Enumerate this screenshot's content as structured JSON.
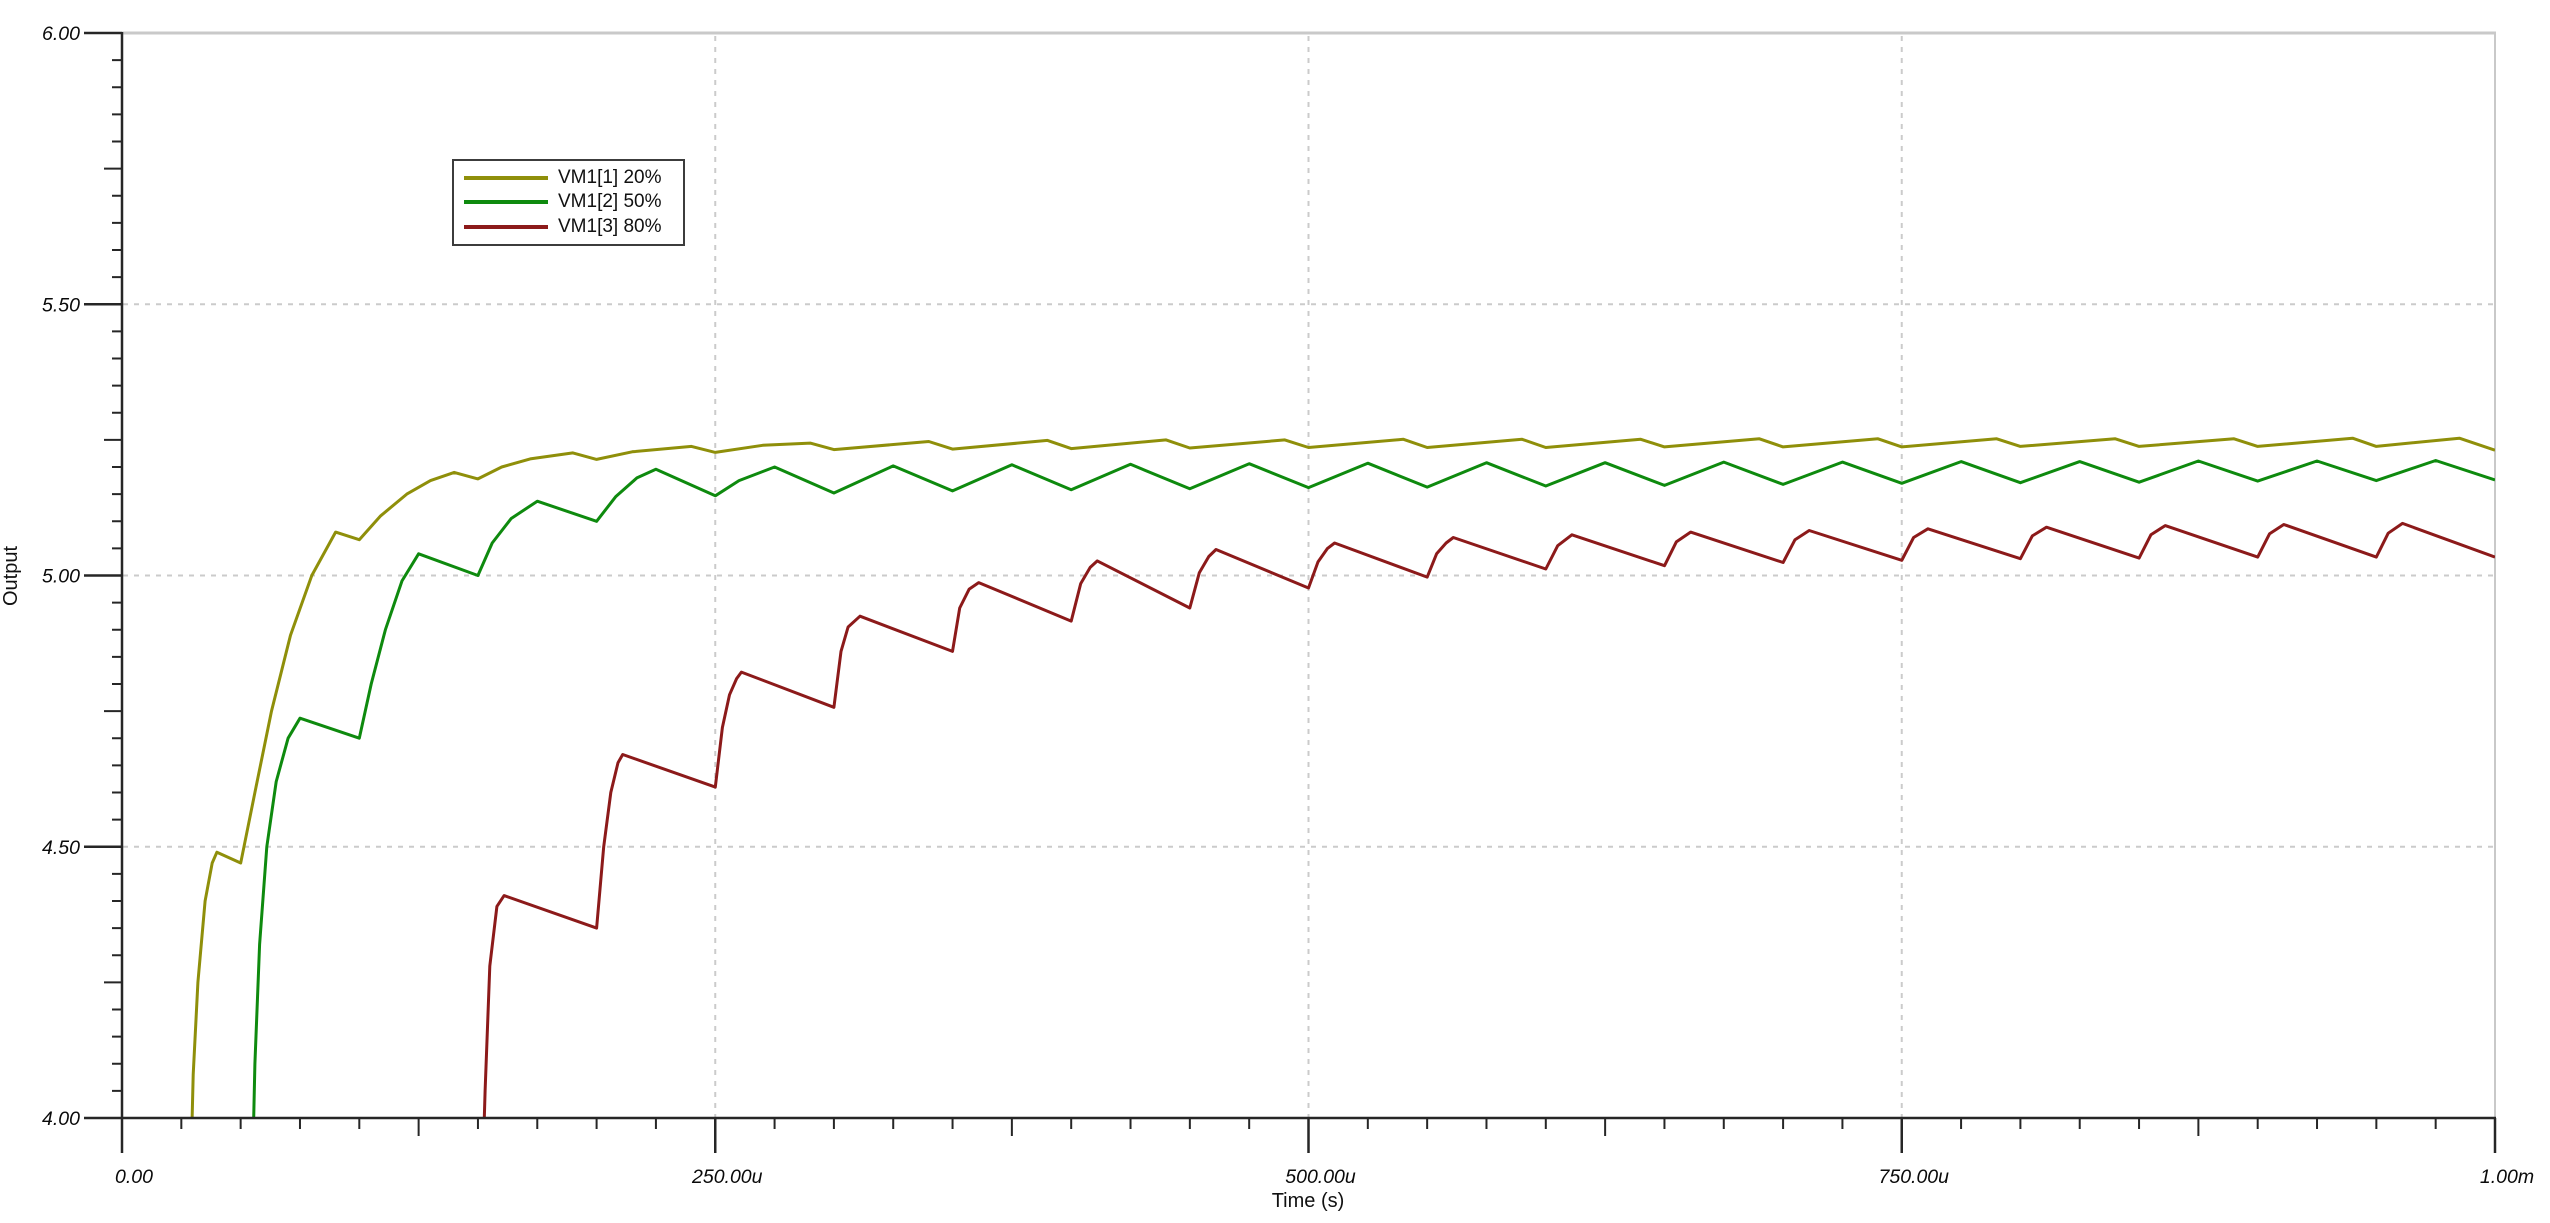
{
  "chart_data": {
    "type": "line",
    "title": "",
    "xlabel": "Time (s)",
    "ylabel": "Output",
    "x_unit_note": "x values in microseconds",
    "xlim_us": [
      0,
      1000
    ],
    "ylim": [
      4.0,
      6.0
    ],
    "grid": "dashed light-gray lines at major ticks",
    "legend_position": "inside-upper-left",
    "x_major_ticks": [
      {
        "value": 0,
        "label": "0.00"
      },
      {
        "value": 250,
        "label": "250.00u"
      },
      {
        "value": 500,
        "label": "500.00u"
      },
      {
        "value": 750,
        "label": "750.00u"
      },
      {
        "value": 1000,
        "label": "1.00m"
      }
    ],
    "x_minor_step_us": 25,
    "x_mid_step_us": 125,
    "y_major_ticks": [
      {
        "value": 4.0,
        "label": "4.00"
      },
      {
        "value": 4.5,
        "label": "4.50"
      },
      {
        "value": 5.0,
        "label": "5.00"
      },
      {
        "value": 5.5,
        "label": "5.50"
      },
      {
        "value": 6.0,
        "label": "6.00"
      }
    ],
    "y_minor_step": 0.05,
    "y_mid_step": 0.25,
    "series": [
      {
        "name": "VM1[1] 20%",
        "color": "#8F8F0A",
        "points": [
          [
            29,
            3.9
          ],
          [
            30,
            4.08
          ],
          [
            32,
            4.25
          ],
          [
            35,
            4.4
          ],
          [
            38,
            4.47
          ],
          [
            40,
            4.49
          ],
          [
            50,
            4.47
          ],
          [
            56,
            4.6
          ],
          [
            63,
            4.75
          ],
          [
            71,
            4.89
          ],
          [
            80,
            5.0
          ],
          [
            90,
            5.08
          ],
          [
            100,
            5.066
          ],
          [
            109,
            5.11
          ],
          [
            120,
            5.15
          ],
          [
            130,
            5.175
          ],
          [
            140,
            5.19
          ],
          [
            150,
            5.178
          ],
          [
            160,
            5.2
          ],
          [
            172,
            5.215
          ],
          [
            190,
            5.226
          ],
          [
            200,
            5.214
          ],
          [
            215,
            5.228
          ],
          [
            240,
            5.238
          ],
          [
            250,
            5.227
          ],
          [
            270,
            5.24
          ],
          [
            290,
            5.244
          ],
          [
            300,
            5.232
          ],
          [
            340,
            5.247
          ],
          [
            350,
            5.233
          ],
          [
            390,
            5.249
          ],
          [
            400,
            5.234
          ],
          [
            440,
            5.25
          ],
          [
            450,
            5.235
          ],
          [
            490,
            5.25
          ],
          [
            500,
            5.236
          ],
          [
            540,
            5.251
          ],
          [
            550,
            5.236
          ],
          [
            590,
            5.251
          ],
          [
            600,
            5.236
          ],
          [
            640,
            5.251
          ],
          [
            650,
            5.237
          ],
          [
            690,
            5.252
          ],
          [
            700,
            5.237
          ],
          [
            740,
            5.252
          ],
          [
            750,
            5.237
          ],
          [
            790,
            5.252
          ],
          [
            800,
            5.238
          ],
          [
            840,
            5.252
          ],
          [
            850,
            5.238
          ],
          [
            890,
            5.252
          ],
          [
            900,
            5.238
          ],
          [
            940,
            5.253
          ],
          [
            950,
            5.238
          ],
          [
            985,
            5.253
          ],
          [
            1000,
            5.231
          ]
        ]
      },
      {
        "name": "VM1[2] 50%",
        "color": "#0E8A0E",
        "points": [
          [
            55,
            3.9
          ],
          [
            56,
            4.1
          ],
          [
            58,
            4.32
          ],
          [
            61,
            4.5
          ],
          [
            65,
            4.62
          ],
          [
            70,
            4.7
          ],
          [
            75,
            4.737
          ],
          [
            100,
            4.7
          ],
          [
            105,
            4.8
          ],
          [
            111,
            4.9
          ],
          [
            118,
            4.99
          ],
          [
            125,
            5.04
          ],
          [
            150,
            5.0
          ],
          [
            156,
            5.06
          ],
          [
            164,
            5.105
          ],
          [
            175,
            5.137
          ],
          [
            200,
            5.1
          ],
          [
            208,
            5.145
          ],
          [
            217,
            5.18
          ],
          [
            225,
            5.196
          ],
          [
            250,
            5.147
          ],
          [
            260,
            5.175
          ],
          [
            275,
            5.2
          ],
          [
            300,
            5.152
          ],
          [
            325,
            5.202
          ],
          [
            350,
            5.156
          ],
          [
            375,
            5.204
          ],
          [
            400,
            5.158
          ],
          [
            425,
            5.205
          ],
          [
            450,
            5.16
          ],
          [
            475,
            5.206
          ],
          [
            500,
            5.162
          ],
          [
            525,
            5.207
          ],
          [
            550,
            5.163
          ],
          [
            575,
            5.208
          ],
          [
            600,
            5.165
          ],
          [
            625,
            5.208
          ],
          [
            650,
            5.166
          ],
          [
            675,
            5.209
          ],
          [
            700,
            5.168
          ],
          [
            725,
            5.209
          ],
          [
            750,
            5.17
          ],
          [
            775,
            5.21
          ],
          [
            800,
            5.171
          ],
          [
            825,
            5.21
          ],
          [
            850,
            5.172
          ],
          [
            875,
            5.211
          ],
          [
            900,
            5.174
          ],
          [
            925,
            5.211
          ],
          [
            950,
            5.175
          ],
          [
            975,
            5.212
          ],
          [
            1000,
            5.176
          ]
        ]
      },
      {
        "name": "VM1[3] 80%",
        "color": "#8C1A1A",
        "points": [
          [
            152,
            3.9
          ],
          [
            153,
            4.05
          ],
          [
            155,
            4.28
          ],
          [
            158,
            4.39
          ],
          [
            161,
            4.41
          ],
          [
            200,
            4.35
          ],
          [
            203,
            4.5
          ],
          [
            206,
            4.6
          ],
          [
            209,
            4.655
          ],
          [
            211,
            4.67
          ],
          [
            250,
            4.61
          ],
          [
            253,
            4.72
          ],
          [
            256,
            4.78
          ],
          [
            259,
            4.81
          ],
          [
            261,
            4.822
          ],
          [
            300,
            4.757
          ],
          [
            303,
            4.86
          ],
          [
            306,
            4.905
          ],
          [
            311,
            4.925
          ],
          [
            350,
            4.86
          ],
          [
            353,
            4.94
          ],
          [
            357,
            4.975
          ],
          [
            361,
            4.987
          ],
          [
            400,
            4.916
          ],
          [
            404,
            4.985
          ],
          [
            408,
            5.015
          ],
          [
            411,
            5.027
          ],
          [
            450,
            4.94
          ],
          [
            454,
            5.005
          ],
          [
            458,
            5.035
          ],
          [
            461,
            5.048
          ],
          [
            500,
            4.977
          ],
          [
            504,
            5.025
          ],
          [
            508,
            5.05
          ],
          [
            511,
            5.06
          ],
          [
            550,
            4.997
          ],
          [
            554,
            5.04
          ],
          [
            558,
            5.06
          ],
          [
            561,
            5.07
          ],
          [
            600,
            5.012
          ],
          [
            605,
            5.055
          ],
          [
            611,
            5.075
          ],
          [
            650,
            5.018
          ],
          [
            655,
            5.062
          ],
          [
            661,
            5.08
          ],
          [
            700,
            5.024
          ],
          [
            705,
            5.066
          ],
          [
            711,
            5.083
          ],
          [
            750,
            5.028
          ],
          [
            755,
            5.07
          ],
          [
            761,
            5.086
          ],
          [
            800,
            5.031
          ],
          [
            805,
            5.073
          ],
          [
            811,
            5.089
          ],
          [
            850,
            5.032
          ],
          [
            855,
            5.075
          ],
          [
            861,
            5.092
          ],
          [
            900,
            5.034
          ],
          [
            905,
            5.077
          ],
          [
            911,
            5.094
          ],
          [
            950,
            5.034
          ],
          [
            955,
            5.078
          ],
          [
            961,
            5.096
          ],
          [
            1000,
            5.034
          ]
        ]
      }
    ]
  },
  "styles": {
    "gridline_color": "#cbcbcb",
    "border_color": "#c9c9c9",
    "axis_color": "#262626",
    "tick_label_color": "#0a0a0a"
  }
}
